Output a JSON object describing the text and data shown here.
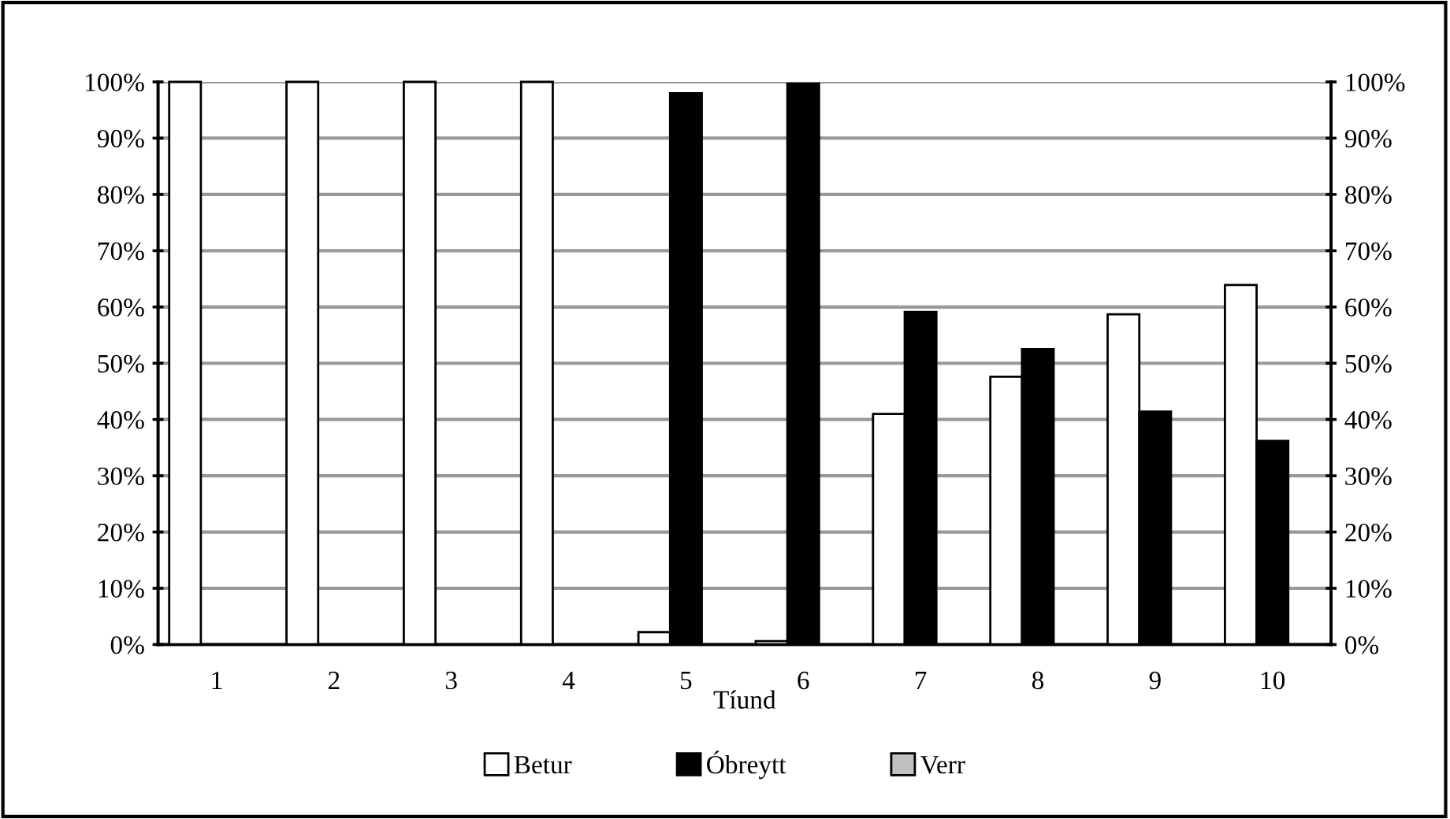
{
  "chart_data": {
    "type": "bar",
    "xlabel": "Tíund",
    "categories": [
      "1",
      "2",
      "3",
      "4",
      "5",
      "6",
      "7",
      "8",
      "9",
      "10"
    ],
    "series": [
      {
        "name": "Betur",
        "color": "#ffffff",
        "values": [
          100,
          100,
          100,
          100,
          2.2,
          0.6,
          41.0,
          47.6,
          58.7,
          63.9
        ]
      },
      {
        "name": "Óbreytt",
        "color": "#000000",
        "values": [
          0,
          0,
          0,
          0,
          98.0,
          99.7,
          59.1,
          52.5,
          41.4,
          36.2
        ]
      },
      {
        "name": "Verr",
        "color": "#c0c0c0",
        "values": [
          0,
          0,
          0,
          0,
          0,
          0,
          0,
          0,
          0,
          0
        ]
      }
    ],
    "ylim": [
      0,
      100
    ],
    "yticks": [
      {
        "value": 0,
        "label": "0%"
      },
      {
        "value": 10,
        "label": "10%"
      },
      {
        "value": 20,
        "label": "20%"
      },
      {
        "value": 30,
        "label": "30%"
      },
      {
        "value": 40,
        "label": "40%"
      },
      {
        "value": 50,
        "label": "50%"
      },
      {
        "value": 60,
        "label": "60%"
      },
      {
        "value": 70,
        "label": "70%"
      },
      {
        "value": 80,
        "label": "80%"
      },
      {
        "value": 90,
        "label": "90%"
      },
      {
        "value": 100,
        "label": "100%"
      }
    ],
    "y2lim": [
      0,
      100
    ],
    "y2ticks": [
      {
        "value": 0,
        "label": "0%"
      },
      {
        "value": 10,
        "label": "10%"
      },
      {
        "value": 20,
        "label": "20%"
      },
      {
        "value": 30,
        "label": "30%"
      },
      {
        "value": 40,
        "label": "40%"
      },
      {
        "value": 50,
        "label": "50%"
      },
      {
        "value": 60,
        "label": "60%"
      },
      {
        "value": 70,
        "label": "70%"
      },
      {
        "value": 80,
        "label": "80%"
      },
      {
        "value": 90,
        "label": "90%"
      },
      {
        "value": 100,
        "label": "100%"
      }
    ],
    "grid": "y",
    "legend": "bottom"
  }
}
